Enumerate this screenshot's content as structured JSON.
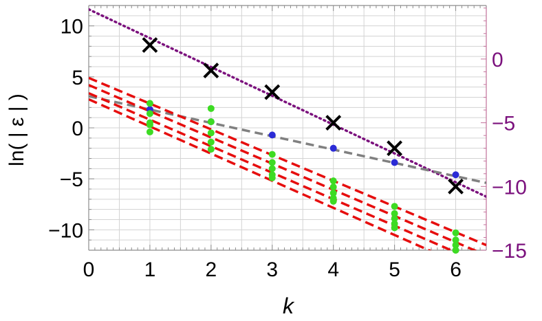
{
  "chart_data": {
    "type": "scatter",
    "title": "",
    "xlabel": "k",
    "ylabel": "ln( | ε | )",
    "xlim": [
      0,
      6.5
    ],
    "ylim_left": [
      -12,
      12
    ],
    "ylim_right": [
      -15,
      4.2
    ],
    "grid": true,
    "x_ticks": [
      "0",
      "1",
      "2",
      "3",
      "4",
      "5",
      "6"
    ],
    "y_ticks_left": [
      "10",
      "5",
      "0",
      "−5",
      "−10"
    ],
    "y_ticks_right": [
      "0",
      "−5",
      "−10",
      "−15"
    ],
    "colors": {
      "frame": "#8c8c8c",
      "grid": "#d3d3d3",
      "right_axis": "#c2709a",
      "right_tick_text": "#7b117d",
      "cross": "#000000",
      "cross_fit": "#7b117d",
      "blue_points": "#2b2bd6",
      "blue_fit": "#808080",
      "green_points": "#3ddb23",
      "red_fit": "#e60e0e"
    },
    "series": [
      {
        "marker": "cross",
        "axis": "right",
        "x": [
          1,
          2,
          3,
          4,
          5,
          6
        ],
        "y": [
          1.1,
          -0.9,
          -2.6,
          -5.0,
          -7.0,
          -10.0
        ]
      },
      {
        "marker": "dotted-line",
        "axis": "right",
        "x": [
          0,
          6.5
        ],
        "y": [
          3.9,
          -10.8
        ]
      },
      {
        "marker": "blue-dot",
        "axis": "left",
        "x": [
          1,
          2,
          3,
          4,
          5,
          6
        ],
        "y": [
          1.8,
          0.6,
          -0.7,
          -2.0,
          -3.4,
          -4.6
        ]
      },
      {
        "marker": "dashed-line",
        "axis": "left",
        "x": [
          0,
          6.5
        ],
        "y": [
          3.1,
          -5.4
        ]
      },
      {
        "marker": "green-dot",
        "axis": "left",
        "x": [
          1,
          1,
          1,
          1,
          1,
          2,
          2,
          2,
          2,
          2,
          3,
          3,
          3,
          3,
          3,
          4,
          4,
          4,
          4,
          4,
          5,
          5,
          5,
          5,
          5,
          6,
          6,
          6,
          6,
          6
        ],
        "y": [
          2.4,
          1.4,
          0.5,
          -0.4,
          0.3,
          1.9,
          0.6,
          -0.5,
          -1.4,
          -2.1,
          -2.6,
          -3.4,
          -4.0,
          -4.6,
          -4.9,
          -5.2,
          -5.8,
          -6.4,
          -6.9,
          -7.2,
          -7.7,
          -8.4,
          -8.9,
          -9.4,
          -9.8,
          -10.3,
          -11.0,
          -11.5,
          -12.0,
          -12.0
        ]
      },
      {
        "marker": "red-dashed-lines",
        "axis": "left",
        "x": [
          0,
          6.5
        ],
        "lines": [
          [
            4.9,
            -11.5
          ],
          [
            4.2,
            -12.5
          ],
          [
            3.4,
            -13.5
          ],
          [
            2.8,
            -14.5
          ]
        ]
      }
    ]
  }
}
